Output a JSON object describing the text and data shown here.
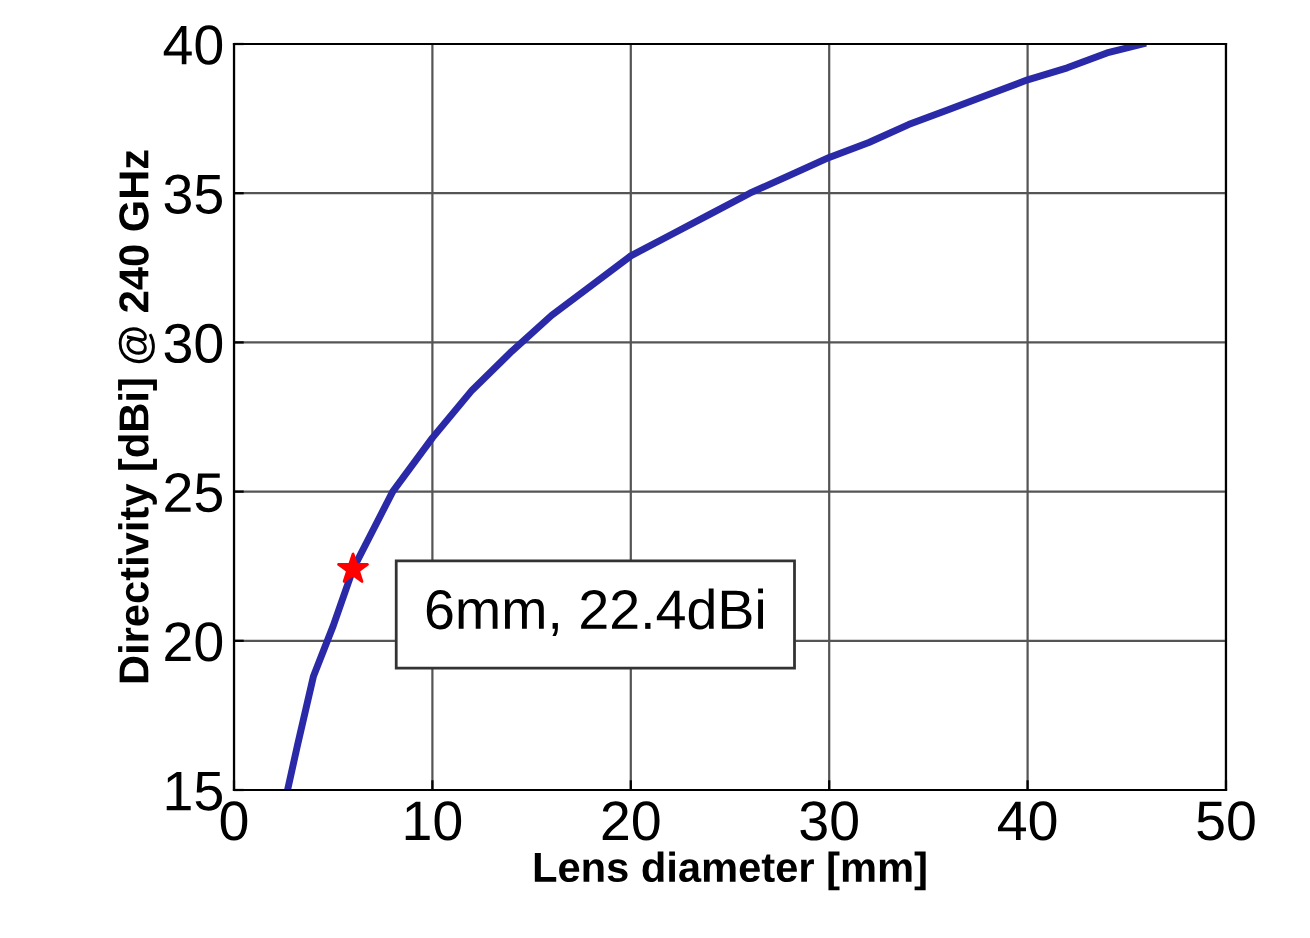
{
  "chart_data": {
    "type": "line",
    "xlabel": "Lens diameter [mm]",
    "ylabel": "Directivity [dBi] @ 240 GHz",
    "xlim": [
      0,
      50
    ],
    "ylim": [
      15,
      40
    ],
    "xticks": [
      0,
      10,
      20,
      30,
      40,
      50
    ],
    "yticks": [
      15,
      20,
      25,
      30,
      35,
      40
    ],
    "grid": true,
    "series": [
      {
        "color": "#2a2aa8",
        "x": [
          2.7,
          3.2,
          4,
          5,
          6,
          8,
          10,
          12,
          14,
          16,
          18,
          20,
          22,
          24,
          26,
          28,
          30,
          32,
          34,
          36,
          38,
          40,
          42,
          44,
          45.8
        ],
        "values": [
          15,
          16.5,
          18.8,
          20.5,
          22.4,
          25,
          26.8,
          28.4,
          29.7,
          30.9,
          31.9,
          32.9,
          33.6,
          34.3,
          35,
          35.6,
          36.2,
          36.7,
          37.3,
          37.8,
          38.3,
          38.8,
          39.2,
          39.7,
          40
        ]
      },
      {
        "type": "scatter",
        "color": "#ff0000",
        "marker": "star",
        "x": [
          6
        ],
        "values": [
          22.4
        ]
      }
    ],
    "annotations": [
      {
        "text": "6mm, 22.4dBi",
        "x": 6,
        "y": 22.4
      }
    ]
  }
}
